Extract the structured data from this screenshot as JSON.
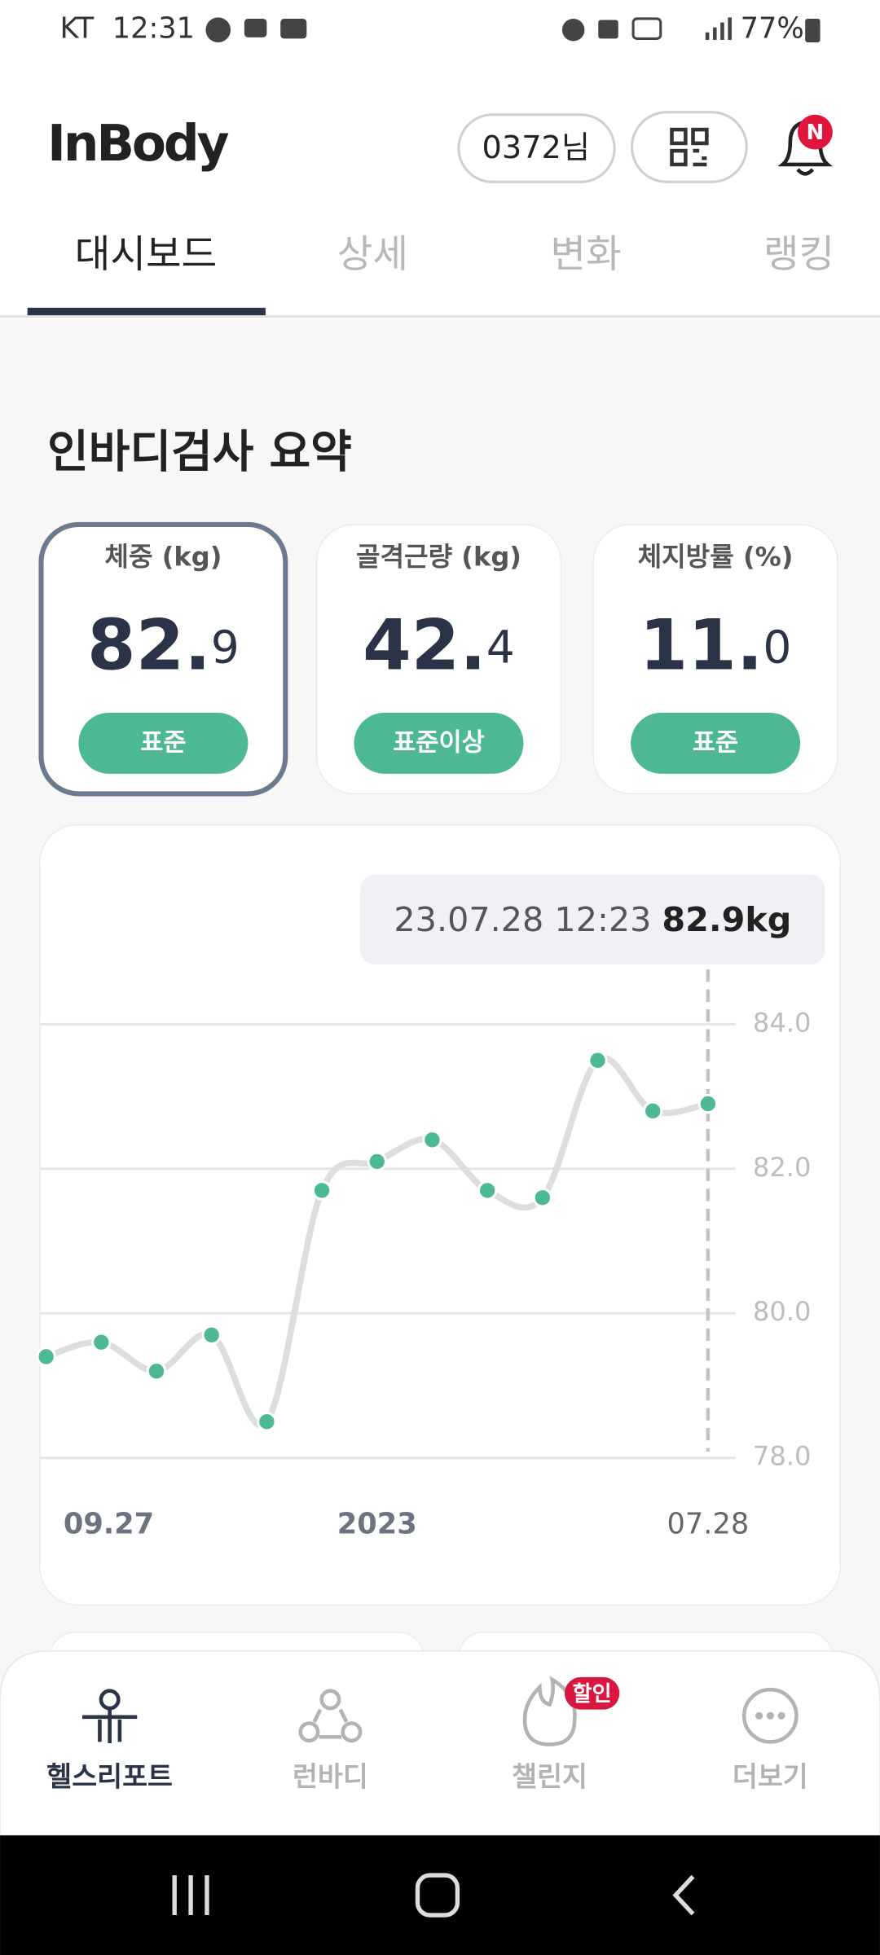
{
  "status_bar": {
    "carrier": "KT",
    "time": "12:31",
    "battery": "77%"
  },
  "header": {
    "logo": "InBody",
    "user": "0372님"
  },
  "tabs": [
    "대시보드",
    "상세",
    "변화",
    "랭킹"
  ],
  "section_title": "인바디검사 요약",
  "cards": [
    {
      "label": "체중 (kg)",
      "integer": "82.",
      "decimal": "9",
      "status": "표준"
    },
    {
      "label": "골격근량 (kg)",
      "integer": "42.",
      "decimal": "4",
      "status": "표준이상"
    },
    {
      "label": "체지방률 (%)",
      "integer": "11.",
      "decimal": "0",
      "status": "표준"
    }
  ],
  "chart_data": {
    "type": "line",
    "categories": [
      null,
      "09.27",
      null,
      null,
      null,
      null,
      "2023",
      null,
      null,
      null,
      null,
      null,
      "07.28"
    ],
    "values": [
      79.4,
      79.6,
      79.2,
      79.7,
      78.5,
      81.7,
      82.1,
      82.4,
      81.7,
      81.6,
      83.5,
      82.8,
      82.9
    ],
    "color": "#4cb994",
    "line_color": "#dcdde0",
    "ylim": [
      78,
      84
    ],
    "yticks": [
      {
        "value": 78,
        "label": "78.0"
      },
      {
        "value": 80,
        "label": "80.0"
      },
      {
        "value": 82,
        "label": "82.0"
      },
      {
        "value": 84,
        "label": "84.0"
      }
    ],
    "grid": true,
    "tooltip": {
      "date": "23.07.28 12:23",
      "value": 82.9,
      "value_label": "82.9kg"
    }
  },
  "bottom_nav": {
    "items": [
      "헬스리포트",
      "런바디",
      "챌린지",
      "더보기"
    ],
    "badge": "할인"
  }
}
